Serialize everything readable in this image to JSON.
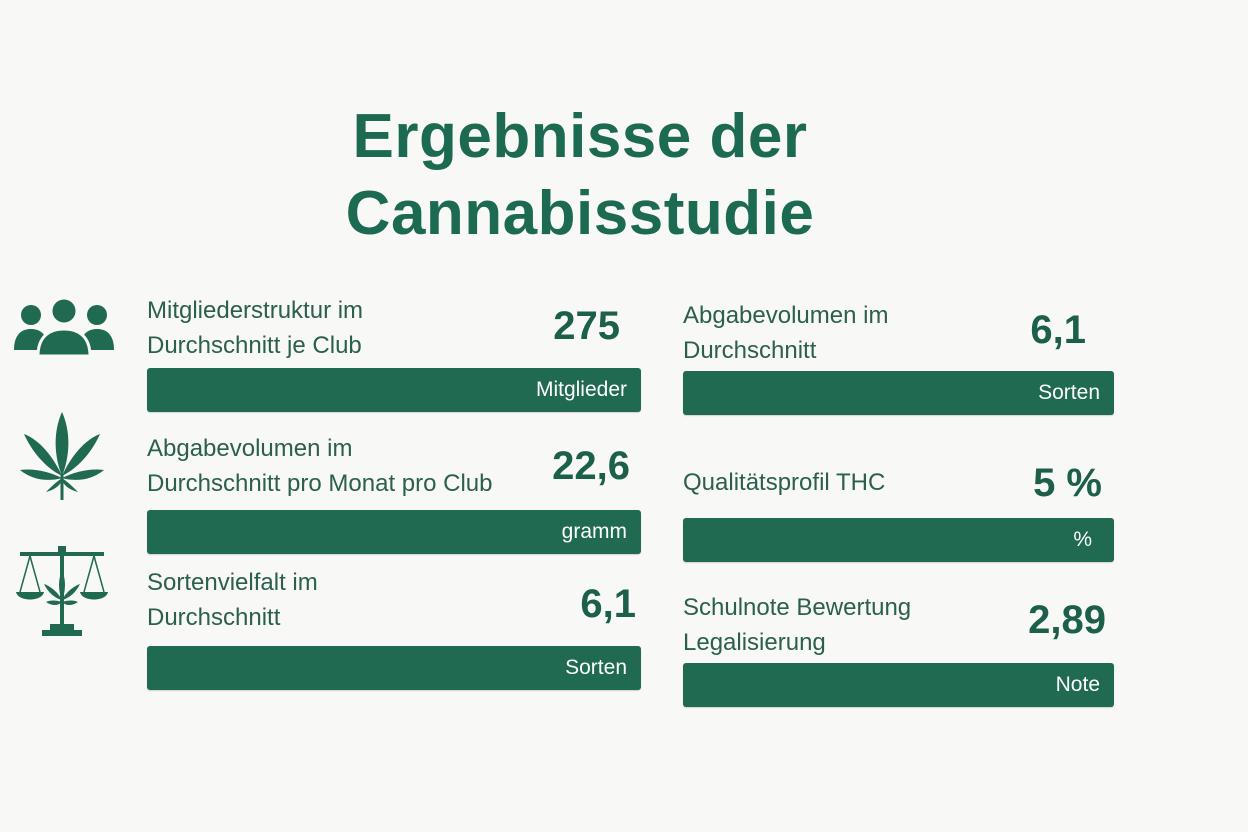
{
  "title": {
    "line1": "Ergebnisse der",
    "line2": "Cannabisstudie"
  },
  "colors": {
    "primary": "#1f6a51",
    "text": "#2b5f4e",
    "background": "#f8f8f6"
  },
  "icons": [
    "people-icon",
    "cannabis-leaf-icon",
    "scales-cannabis-icon"
  ],
  "left": [
    {
      "label1": "Mitgliederstruktur im",
      "label2": "Durchschnitt je Club",
      "value": "275",
      "unit": "Mitglieder"
    },
    {
      "label1": "Abgabevolumen im",
      "label2": "Durchschnitt pro Monat pro Club",
      "value": "22,6",
      "unit": "gramm"
    },
    {
      "label1": "Sortenvielfalt im",
      "label2": "Durchschnitt",
      "value": "6,1",
      "unit": "Sorten"
    }
  ],
  "right": [
    {
      "label1": "Abgabevolumen im",
      "label2": "Durchschnitt",
      "value": "6,1",
      "unit": "Sorten"
    },
    {
      "label1": "Qualitätsprofil THC",
      "value": "5 %",
      "unit": "%"
    },
    {
      "label1": "Schulnote Bewertung",
      "label2": "Legalisierung",
      "value": "2,89",
      "unit": "Note"
    }
  ]
}
